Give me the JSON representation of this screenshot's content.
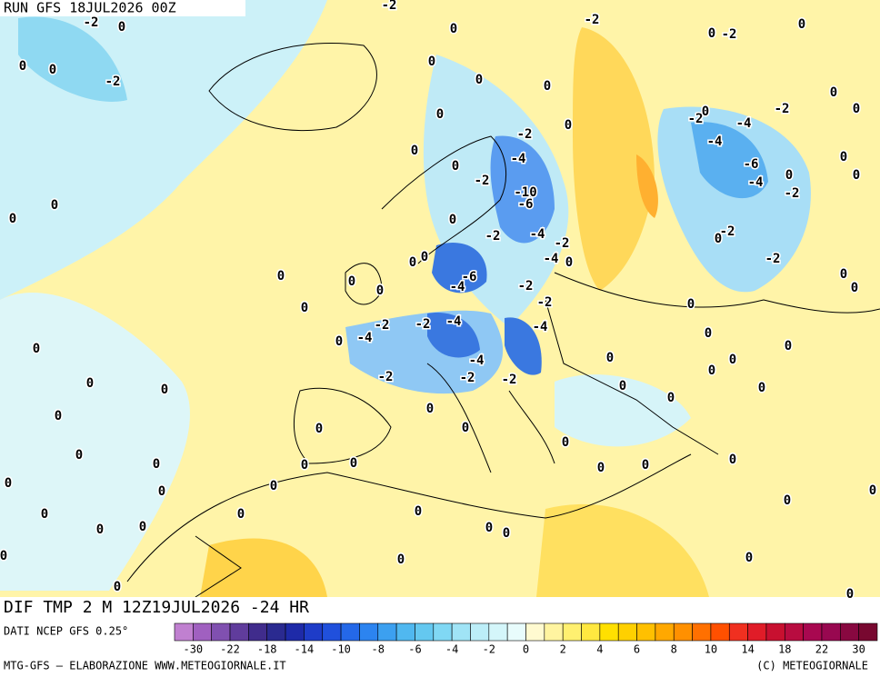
{
  "header": {
    "run": "RUN GFS 18JUL2026 00Z"
  },
  "map": {
    "title": "DIF TMP 2 M 12Z19JUL2026 -24 HR",
    "labels": [
      "0",
      "-2",
      "0",
      "-2",
      "-2",
      "0",
      "0",
      "0",
      "0",
      "0",
      "0",
      "-2",
      "0",
      "-2",
      "0",
      "0",
      "-2",
      "-2",
      "0",
      "-4",
      "0",
      "-4",
      "-6",
      "0",
      "-4",
      "0",
      "-2",
      "0",
      "-2",
      "-4",
      "0",
      "-2",
      "-10",
      "-6",
      "0",
      "0",
      "0",
      "0",
      "-2",
      "-4",
      "-2",
      "-4",
      "0",
      "0",
      "0",
      "-2",
      "0",
      "-2",
      "0",
      "0",
      "0",
      "0",
      "-6",
      "-4",
      "-2",
      "-2",
      "0",
      "0",
      "0",
      "-2",
      "-2",
      "-4",
      "-4",
      "-4",
      "0",
      "0",
      "0",
      "0",
      "0",
      "-4",
      "-2",
      "-2",
      "-2",
      "0",
      "0",
      "0",
      "0",
      "0",
      "0",
      "0",
      "0",
      "0",
      "0",
      "0",
      "0",
      "0",
      "0",
      "0",
      "0",
      "0",
      "0",
      "0",
      "0",
      "0",
      "0",
      "0",
      "0",
      "0",
      "0",
      "0",
      "0",
      "0",
      "0",
      "0",
      "0",
      "0",
      "0",
      "0",
      "0",
      "0"
    ]
  },
  "colorbar": {
    "source": "DATI NCEP GFS 0.25°",
    "colors": [
      "#c080d0",
      "#a060c0",
      "#8050b0",
      "#603c9c",
      "#402c8c",
      "#2a2a90",
      "#1e2aa8",
      "#1e3cc8",
      "#2050dc",
      "#2468e8",
      "#2c84f0",
      "#3ca0f0",
      "#50b8f0",
      "#64c8f0",
      "#80d8f4",
      "#a0e4f6",
      "#bceef8",
      "#d4f6fa",
      "#e8fcfc",
      "#fffad0",
      "#fff4a0",
      "#fff070",
      "#ffe840",
      "#ffe000",
      "#ffd000",
      "#ffc000",
      "#ffa800",
      "#ff9000",
      "#ff7000",
      "#ff5000",
      "#f03020",
      "#e01c28",
      "#c81030",
      "#b80c40",
      "#a80850",
      "#980850",
      "#880840",
      "#780830"
    ],
    "ticks": [
      -30,
      -22,
      -18,
      -14,
      -10,
      -8,
      -6,
      -4,
      -2,
      0,
      2,
      4,
      6,
      8,
      10,
      14,
      18,
      22,
      30
    ]
  },
  "footer": {
    "left": "MTG-GFS — ELABORAZIONE WWW.METEOGIORNALE.IT",
    "right": "(C) METEOGIORNALE"
  }
}
